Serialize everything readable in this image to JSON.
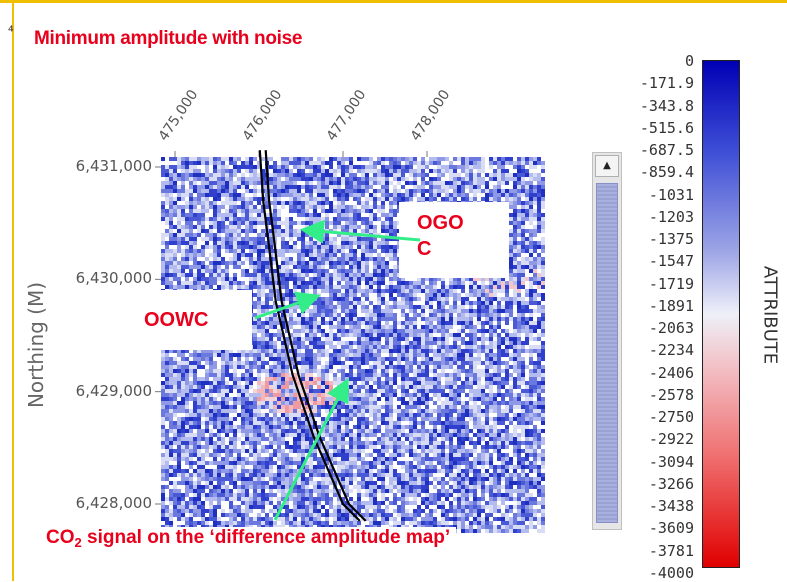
{
  "title": "Minimum amplitude with noise",
  "chart_data": {
    "type": "heatmap",
    "x_ticks": [
      "475,000",
      "476,000",
      "477,000",
      "478,000"
    ],
    "x_tick_values": [
      475000,
      476000,
      477000,
      478000
    ],
    "y_ticks": [
      "6,431,000",
      "6,430,000",
      "6,429,000",
      "6,428,000"
    ],
    "y_tick_values": [
      6431000,
      6430000,
      6429000,
      6428000
    ],
    "ylabel": "Northing (M)",
    "colorbar": {
      "label": "ATTRIBUTE",
      "ticks": [
        "0",
        "-171.9",
        "-343.8",
        "-515.6",
        "-687.5",
        "-859.4",
        "-1031",
        "-1203",
        "-1375",
        "-1547",
        "-1719",
        "-1891",
        "-2063",
        "-2234",
        "-2406",
        "-2578",
        "-2750",
        "-2922",
        "-3094",
        "-3266",
        "-3438",
        "-3609",
        "-3781",
        "-4000"
      ],
      "range": [
        -4000,
        0
      ],
      "colors": [
        "#0000b4",
        "#eef0f8",
        "#e00000"
      ]
    },
    "contour_lines": [
      [
        [
          476010,
          6431150
        ],
        [
          476050,
          6430700
        ],
        [
          476110,
          6430350
        ],
        [
          476200,
          6429800
        ],
        [
          476400,
          6429150
        ],
        [
          476650,
          6428600
        ],
        [
          477000,
          6428000
        ],
        [
          477200,
          6427850
        ]
      ],
      [
        [
          476080,
          6431150
        ],
        [
          476120,
          6430700
        ],
        [
          476180,
          6430350
        ],
        [
          476270,
          6429800
        ],
        [
          476470,
          6429150
        ],
        [
          476720,
          6428600
        ],
        [
          477070,
          6428000
        ],
        [
          477270,
          6427850
        ]
      ]
    ],
    "co2_anomaly": {
      "x": 476400,
      "y": 6429000
    }
  },
  "annotations": {
    "ogoc": "OGO\nC",
    "oowc": "OOWC",
    "co2_prefix": "CO",
    "co2_sub": "2",
    "co2_suffix": " signal on the ‘difference amplitude map’"
  },
  "scrollbar": {
    "up_arrow": "▲"
  },
  "colors": {
    "annotation": "#e8001c",
    "arrow": "#33ee88",
    "contour": "#000000"
  }
}
